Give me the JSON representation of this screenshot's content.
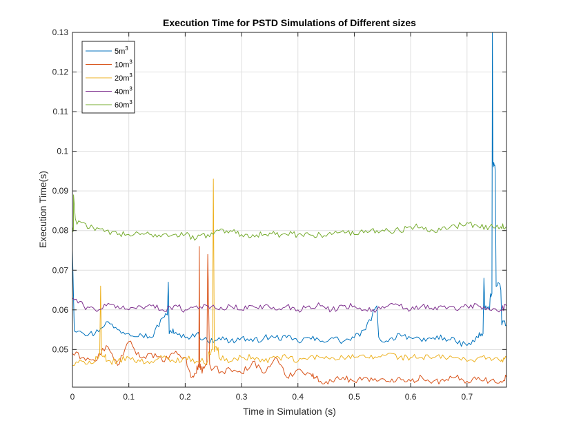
{
  "chart_data": {
    "type": "line",
    "title": "Execution Time for PSTD Simulations of Different sizes",
    "xlabel": "Time in Simulation (s)",
    "ylabel": "Execution Time(s)",
    "xlim": [
      0,
      0.77
    ],
    "ylim": [
      0.0405,
      0.13
    ],
    "xticks": [
      0,
      0.1,
      0.2,
      0.3,
      0.4,
      0.5,
      0.6,
      0.7
    ],
    "xtick_labels": [
      "0",
      "0.1",
      "0.2",
      "0.3",
      "0.4",
      "0.5",
      "0.6",
      "0.7"
    ],
    "yticks": [
      0.05,
      0.06,
      0.07,
      0.08,
      0.09,
      0.1,
      0.11,
      0.12,
      0.13
    ],
    "ytick_labels": [
      "0.05",
      "0.06",
      "0.07",
      "0.08",
      "0.09",
      "0.1",
      "0.11",
      "0.12",
      "0.13"
    ],
    "grid": true,
    "legend_position": "top-left",
    "series": [
      {
        "name": "5m",
        "name_sup": "3",
        "color": "#0072BD",
        "x": [
          0,
          0.02,
          0.04,
          0.06,
          0.08,
          0.1,
          0.12,
          0.14,
          0.16,
          0.17,
          0.18,
          0.2,
          0.22,
          0.24,
          0.26,
          0.28,
          0.3,
          0.32,
          0.34,
          0.36,
          0.38,
          0.4,
          0.42,
          0.44,
          0.46,
          0.48,
          0.5,
          0.52,
          0.54,
          0.56,
          0.58,
          0.6,
          0.62,
          0.64,
          0.66,
          0.68,
          0.7,
          0.72,
          0.73,
          0.74,
          0.745,
          0.75,
          0.76,
          0.77
        ],
        "y": [
          0.075,
          0.054,
          0.054,
          0.057,
          0.055,
          0.054,
          0.054,
          0.053,
          0.058,
          0.067,
          0.054,
          0.053,
          0.054,
          0.052,
          0.053,
          0.052,
          0.053,
          0.052,
          0.053,
          0.053,
          0.053,
          0.052,
          0.053,
          0.052,
          0.053,
          0.052,
          0.053,
          0.055,
          0.061,
          0.052,
          0.054,
          0.053,
          0.052,
          0.053,
          0.053,
          0.052,
          0.051,
          0.053,
          0.068,
          0.06,
          0.13,
          0.095,
          0.065,
          0.056
        ]
      },
      {
        "name": "10m",
        "name_sup": "3",
        "color": "#D95319",
        "x": [
          0,
          0.02,
          0.04,
          0.06,
          0.08,
          0.1,
          0.12,
          0.14,
          0.16,
          0.18,
          0.2,
          0.21,
          0.22,
          0.225,
          0.23,
          0.24,
          0.26,
          0.28,
          0.3,
          0.32,
          0.34,
          0.36,
          0.38,
          0.4,
          0.42,
          0.43,
          0.44,
          0.46,
          0.48,
          0.5,
          0.52,
          0.54,
          0.56,
          0.58,
          0.6,
          0.62,
          0.64,
          0.66,
          0.68,
          0.7,
          0.72,
          0.74,
          0.76,
          0.77
        ],
        "y": [
          0.049,
          0.048,
          0.047,
          0.051,
          0.046,
          0.052,
          0.048,
          0.049,
          0.047,
          0.049,
          0.048,
          0.043,
          0.044,
          0.076,
          0.044,
          0.074,
          0.044,
          0.045,
          0.044,
          0.047,
          0.044,
          0.048,
          0.043,
          0.045,
          0.044,
          0.043,
          0.042,
          0.042,
          0.043,
          0.042,
          0.043,
          0.042,
          0.042,
          0.043,
          0.042,
          0.043,
          0.042,
          0.042,
          0.043,
          0.042,
          0.043,
          0.042,
          0.042,
          0.043
        ]
      },
      {
        "name": "20m",
        "name_sup": "3",
        "color": "#EDB120",
        "x": [
          0,
          0.02,
          0.04,
          0.05,
          0.06,
          0.08,
          0.1,
          0.12,
          0.14,
          0.16,
          0.18,
          0.2,
          0.22,
          0.24,
          0.25,
          0.26,
          0.28,
          0.3,
          0.32,
          0.34,
          0.36,
          0.38,
          0.4,
          0.42,
          0.44,
          0.46,
          0.48,
          0.5,
          0.52,
          0.54,
          0.56,
          0.58,
          0.6,
          0.62,
          0.64,
          0.66,
          0.68,
          0.7,
          0.72,
          0.74,
          0.76,
          0.77
        ],
        "y": [
          0.046,
          0.047,
          0.047,
          0.066,
          0.047,
          0.047,
          0.048,
          0.047,
          0.047,
          0.048,
          0.047,
          0.048,
          0.047,
          0.047,
          0.093,
          0.048,
          0.047,
          0.048,
          0.048,
          0.047,
          0.048,
          0.048,
          0.047,
          0.048,
          0.048,
          0.048,
          0.048,
          0.048,
          0.048,
          0.048,
          0.049,
          0.048,
          0.048,
          0.048,
          0.048,
          0.048,
          0.048,
          0.047,
          0.048,
          0.048,
          0.047,
          0.048
        ]
      },
      {
        "name": "40m",
        "name_sup": "3",
        "color": "#7E2F8E",
        "x": [
          0,
          0.02,
          0.04,
          0.06,
          0.08,
          0.1,
          0.12,
          0.14,
          0.16,
          0.18,
          0.2,
          0.22,
          0.24,
          0.26,
          0.28,
          0.3,
          0.32,
          0.34,
          0.36,
          0.38,
          0.4,
          0.42,
          0.44,
          0.46,
          0.48,
          0.5,
          0.52,
          0.54,
          0.56,
          0.58,
          0.6,
          0.62,
          0.64,
          0.66,
          0.68,
          0.7,
          0.72,
          0.74,
          0.76,
          0.77
        ],
        "y": [
          0.063,
          0.061,
          0.06,
          0.061,
          0.061,
          0.06,
          0.061,
          0.061,
          0.06,
          0.061,
          0.06,
          0.061,
          0.061,
          0.06,
          0.061,
          0.06,
          0.061,
          0.061,
          0.06,
          0.061,
          0.06,
          0.061,
          0.061,
          0.06,
          0.061,
          0.061,
          0.06,
          0.06,
          0.061,
          0.061,
          0.06,
          0.061,
          0.06,
          0.061,
          0.06,
          0.061,
          0.061,
          0.06,
          0.06,
          0.061
        ]
      },
      {
        "name": "60m",
        "name_sup": "3",
        "color": "#77AC30",
        "x": [
          0,
          0.002,
          0.02,
          0.04,
          0.06,
          0.08,
          0.1,
          0.12,
          0.14,
          0.16,
          0.18,
          0.2,
          0.22,
          0.24,
          0.26,
          0.28,
          0.3,
          0.32,
          0.34,
          0.36,
          0.38,
          0.4,
          0.42,
          0.44,
          0.46,
          0.48,
          0.5,
          0.52,
          0.54,
          0.56,
          0.58,
          0.6,
          0.62,
          0.64,
          0.66,
          0.68,
          0.7,
          0.72,
          0.74,
          0.76,
          0.77
        ],
        "y": [
          0.08,
          0.089,
          0.082,
          0.08,
          0.08,
          0.079,
          0.079,
          0.079,
          0.079,
          0.079,
          0.079,
          0.079,
          0.078,
          0.079,
          0.08,
          0.08,
          0.079,
          0.079,
          0.079,
          0.079,
          0.079,
          0.079,
          0.079,
          0.079,
          0.079,
          0.08,
          0.079,
          0.08,
          0.08,
          0.08,
          0.08,
          0.081,
          0.081,
          0.08,
          0.081,
          0.081,
          0.082,
          0.081,
          0.081,
          0.081,
          0.081
        ]
      }
    ]
  }
}
